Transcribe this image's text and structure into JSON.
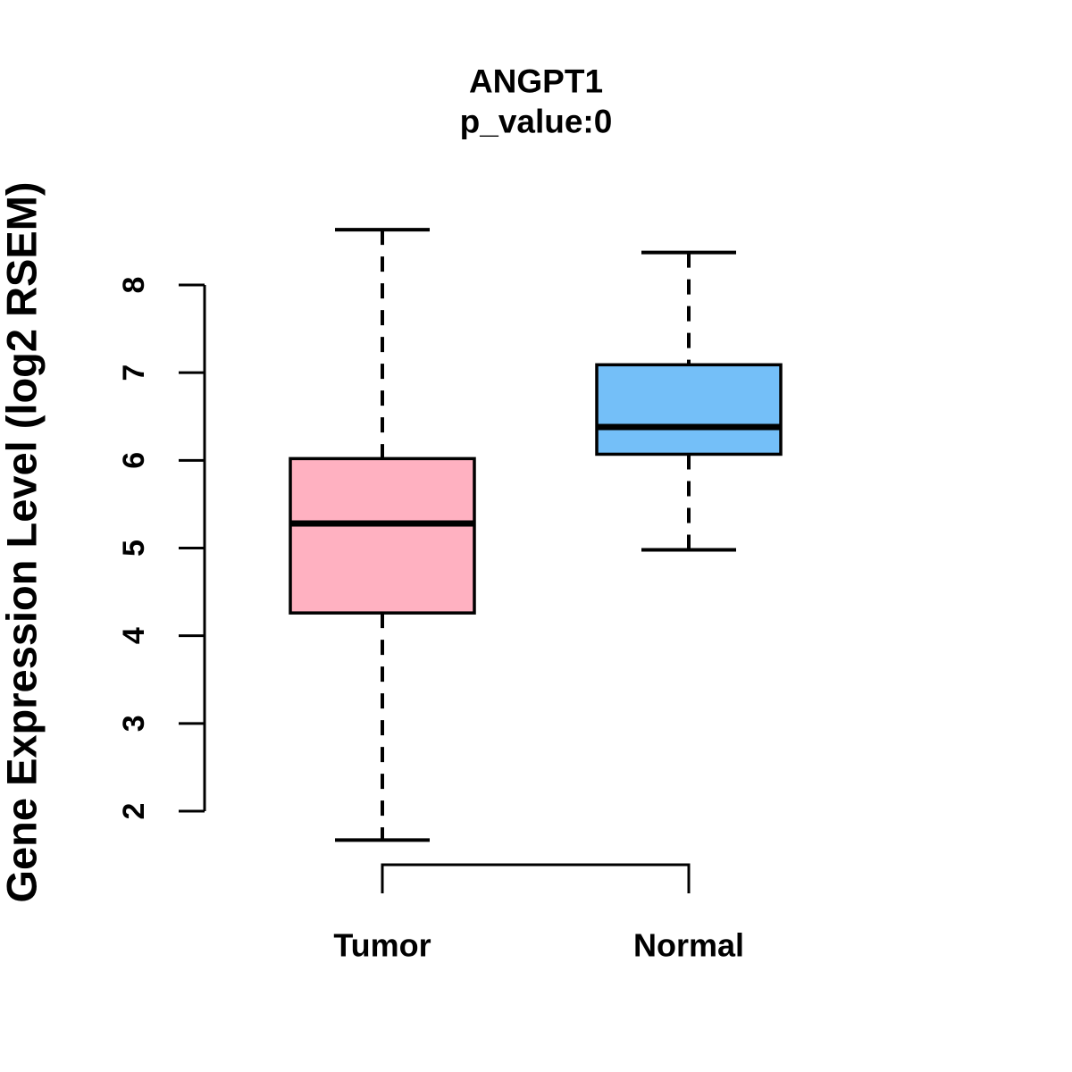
{
  "chart_data": {
    "type": "boxplot",
    "title": "ANGPT1",
    "subtitle": "p_value:0",
    "ylabel": "Gene Expression Level (log2 RSEM)",
    "xlabel": "",
    "categories": [
      "Tumor",
      "Normal"
    ],
    "yticks": [
      2,
      3,
      4,
      5,
      6,
      7,
      8
    ],
    "ylim": [
      1.5,
      8.9
    ],
    "grid": false,
    "legend": null,
    "stroke_color": "#000000",
    "background_color": "#FFFFFF",
    "series": [
      {
        "name": "Tumor",
        "color": "#FFB1C1",
        "whisker_low": 1.67,
        "q1": 4.26,
        "median": 5.28,
        "q3": 6.02,
        "whisker_high": 8.63
      },
      {
        "name": "Normal",
        "color": "#74BFF8",
        "whisker_low": 4.98,
        "q1": 6.07,
        "median": 6.38,
        "q3": 7.09,
        "whisker_high": 8.37
      }
    ]
  }
}
